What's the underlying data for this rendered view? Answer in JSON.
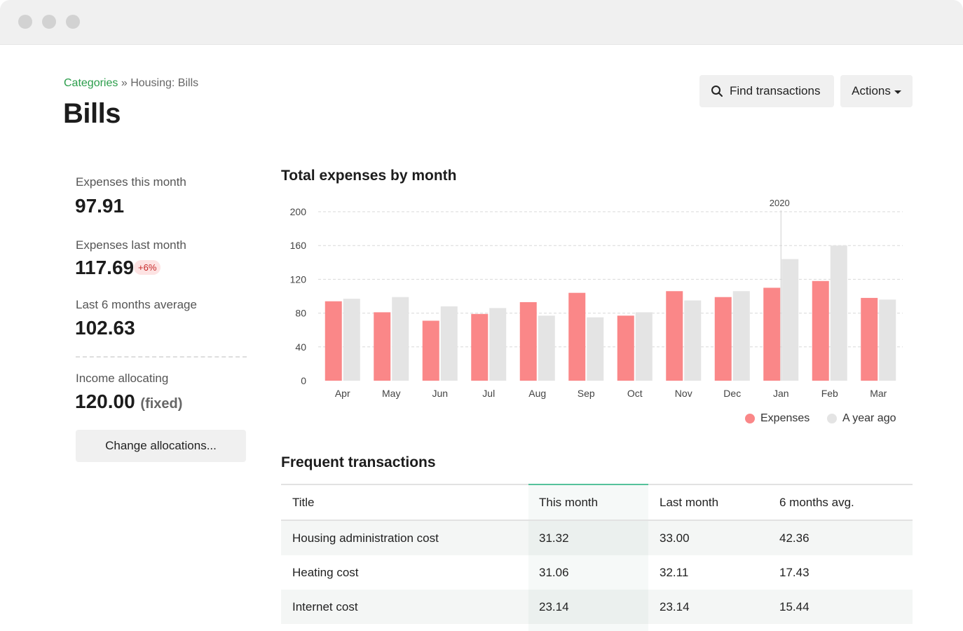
{
  "breadcrumb": {
    "parent": "Categories",
    "separator": "»",
    "current": "Housing: Bills"
  },
  "page_title": "Bills",
  "header_actions": {
    "find_label": "Find transactions",
    "actions_label": "Actions"
  },
  "stats": {
    "this_month_label": "Expenses this month",
    "this_month_value": "97.91",
    "last_month_label": "Expenses last month",
    "last_month_value": "117.69",
    "last_month_badge": "+6%",
    "avg_label": "Last 6 months average",
    "avg_value": "102.63",
    "income_label": "Income allocating",
    "income_value": "120.00",
    "income_suffix": "(fixed)",
    "change_button": "Change allocations..."
  },
  "chart_title": "Total expenses by month",
  "chart_data": {
    "type": "bar",
    "categories": [
      "Apr",
      "May",
      "Jun",
      "Jul",
      "Aug",
      "Sep",
      "Oct",
      "Nov",
      "Dec",
      "Jan",
      "Feb",
      "Mar"
    ],
    "series": [
      {
        "name": "Expenses",
        "color": "#fa8788",
        "values": [
          94,
          81,
          71,
          79,
          93,
          104,
          77,
          106,
          99,
          110,
          118,
          98
        ]
      },
      {
        "name": "A year ago",
        "color": "#e4e4e4",
        "values": [
          97,
          99,
          88,
          86,
          77,
          75,
          81,
          95,
          106,
          144,
          160,
          96
        ]
      }
    ],
    "yticks": [
      0,
      40,
      80,
      120,
      160,
      200
    ],
    "ylim": [
      0,
      200
    ],
    "year_marker": {
      "before_category": "Jan",
      "label": "2020"
    },
    "grid": true,
    "legend_position": "bottom-right"
  },
  "transactions": {
    "title": "Frequent transactions",
    "columns": [
      "Title",
      "This month",
      "Last month",
      "6 months avg."
    ],
    "rows": [
      [
        "Housing administration cost",
        "31.32",
        "33.00",
        "42.36"
      ],
      [
        "Heating cost",
        "31.06",
        "32.11",
        "17.43"
      ],
      [
        "Internet cost",
        "23.14",
        "23.14",
        "15.44"
      ]
    ]
  }
}
